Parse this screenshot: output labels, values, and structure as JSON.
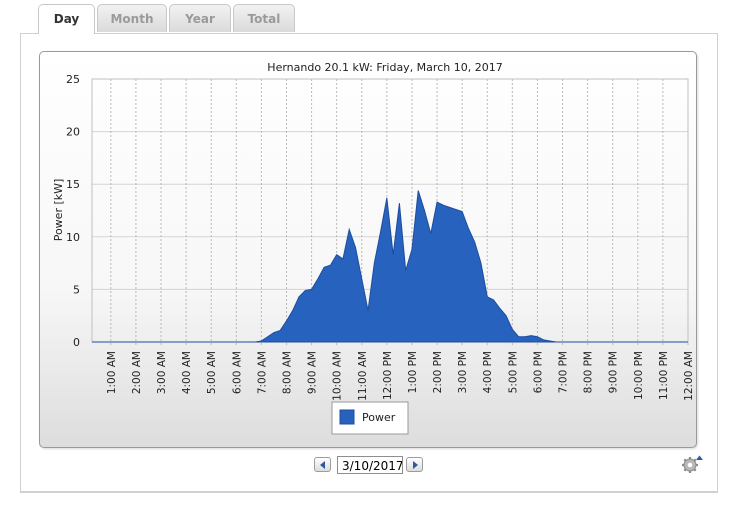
{
  "tabs": [
    {
      "label": "Day",
      "active": true
    },
    {
      "label": "Month",
      "active": false
    },
    {
      "label": "Year",
      "active": false
    },
    {
      "label": "Total",
      "active": false
    }
  ],
  "date_input": {
    "value": "3/10/2017"
  },
  "icons": {
    "prev": "arrow-left-icon",
    "next": "arrow-right-icon",
    "settings": "gear-icon"
  },
  "colors": {
    "series": "#2762be",
    "series_stroke": "#1d4e9e"
  },
  "chart_data": {
    "type": "area",
    "title": "Hernando 20.1 kW: Friday, March 10, 2017",
    "xlabel": "",
    "ylabel": "Power [kW]",
    "ylim": [
      0,
      25
    ],
    "yticks": [
      0,
      5,
      10,
      15,
      20,
      25
    ],
    "xlim": [
      0.25,
      24.0
    ],
    "xticks": [
      1,
      2,
      3,
      4,
      5,
      6,
      7,
      8,
      9,
      10,
      11,
      12,
      13,
      14,
      15,
      16,
      17,
      18,
      19,
      20,
      21,
      22,
      23,
      24
    ],
    "xtick_labels": [
      "1:00 AM",
      "2:00 AM",
      "3:00 AM",
      "4:00 AM",
      "5:00 AM",
      "6:00 AM",
      "7:00 AM",
      "8:00 AM",
      "9:00 AM",
      "10:00 AM",
      "11:00 AM",
      "12:00 PM",
      "1:00 PM",
      "2:00 PM",
      "3:00 PM",
      "4:00 PM",
      "5:00 PM",
      "6:00 PM",
      "7:00 PM",
      "8:00 PM",
      "9:00 PM",
      "10:00 PM",
      "11:00 PM",
      "12:00 AM"
    ],
    "legend": "bottom-center",
    "grid": true,
    "series": [
      {
        "name": "Power",
        "x": [
          0.25,
          6.75,
          7.0,
          7.25,
          7.5,
          7.75,
          8.0,
          8.25,
          8.5,
          8.75,
          9.0,
          9.25,
          9.5,
          9.75,
          10.0,
          10.25,
          10.5,
          10.75,
          11.0,
          11.25,
          11.5,
          11.75,
          12.0,
          12.25,
          12.5,
          12.75,
          13.0,
          13.25,
          13.5,
          13.75,
          14.0,
          14.25,
          14.5,
          14.75,
          15.0,
          15.25,
          15.5,
          15.75,
          16.0,
          16.25,
          16.5,
          16.75,
          17.0,
          17.25,
          17.5,
          17.75,
          18.0,
          18.25,
          18.5,
          18.75,
          24.0
        ],
        "values": [
          0,
          0,
          0.1,
          0.5,
          0.9,
          1.1,
          2.0,
          3.0,
          4.3,
          4.9,
          5.0,
          6.0,
          7.1,
          7.3,
          8.3,
          7.9,
          10.7,
          9.0,
          6.0,
          3.0,
          7.5,
          10.5,
          13.7,
          8.3,
          13.2,
          6.8,
          8.8,
          14.4,
          12.5,
          10.3,
          13.3,
          13.0,
          12.8,
          12.6,
          12.4,
          10.8,
          9.5,
          7.5,
          4.3,
          4.0,
          3.2,
          2.5,
          1.2,
          0.5,
          0.5,
          0.6,
          0.5,
          0.2,
          0.1,
          0,
          0
        ]
      }
    ]
  }
}
